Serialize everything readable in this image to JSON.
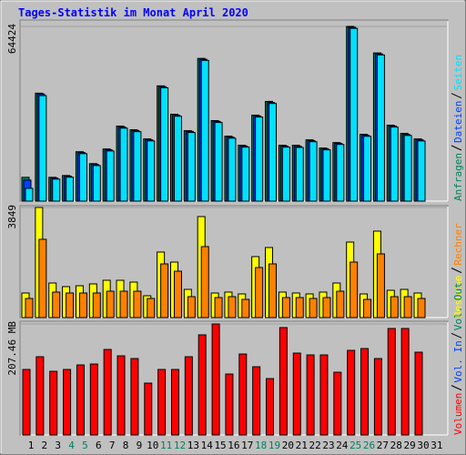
{
  "chart_data": {
    "type": "bar",
    "title": "Tages-Statistik im Monat April 2020",
    "categories": [
      "1",
      "2",
      "3",
      "4",
      "5",
      "6",
      "7",
      "8",
      "9",
      "10",
      "11",
      "12",
      "13",
      "14",
      "15",
      "16",
      "17",
      "18",
      "19",
      "20",
      "21",
      "22",
      "23",
      "24",
      "25",
      "26",
      "27",
      "28",
      "29",
      "30",
      "31"
    ],
    "category_colors": [
      "#000000",
      "#000000",
      "#000000",
      "#00805C",
      "#00805C",
      "#000000",
      "#000000",
      "#000000",
      "#000000",
      "#000000",
      "#00805C",
      "#00805C",
      "#000000",
      "#000000",
      "#000000",
      "#000000",
      "#000000",
      "#00805C",
      "#00805C",
      "#000000",
      "#000000",
      "#000000",
      "#000000",
      "#000000",
      "#00805C",
      "#00805C",
      "#000000",
      "#000000",
      "#000000",
      "#000000",
      "#000000"
    ],
    "panels": [
      {
        "ylim": [
          0,
          64424
        ],
        "yticks": [
          64424
        ],
        "series": [
          {
            "name": "Anfragen",
            "color": "#00805C",
            "values": [
              8770,
              39800,
              8770,
              9444,
              18214,
              13829,
              19226,
              27658,
              26309,
              22936,
              42500,
              32043,
              25972,
              52619,
              29682,
              23948,
              20575,
              31706,
              36765,
              20575,
              20575,
              22599,
              19563,
              21587,
              64424,
              24623,
              54642,
              27996,
              24960,
              22936,
              null
            ]
          },
          {
            "name": "Dateien",
            "color": "#0040FF",
            "values": [
              7758,
              39500,
              8500,
              9200,
              17900,
              13500,
              18900,
              27300,
              26000,
              22600,
              42200,
              31700,
              25700,
              52300,
              29400,
              23600,
              20300,
              31400,
              36400,
              20300,
              20200,
              22300,
              19300,
              21300,
              64100,
              24300,
              54300,
              27700,
              24600,
              22600,
              null
            ]
          },
          {
            "name": "Seiten",
            "color": "#00E0FF",
            "values": [
              4722,
              38900,
              8100,
              8800,
              17500,
              13100,
              18500,
              26900,
              25600,
              22200,
              41800,
              31300,
              25300,
              51900,
              29000,
              23200,
              19900,
              31000,
              36000,
              19900,
              19800,
              21900,
              18900,
              20900,
              63700,
              23900,
              53900,
              27300,
              24200,
              22200,
              null
            ]
          }
        ]
      },
      {
        "ylim": [
          0,
          3849
        ],
        "yticks": [
          3849
        ],
        "series": [
          {
            "name": "Besuche",
            "color": "#FFFF00",
            "values": [
              859,
              3849,
              1209,
              1082,
              1113,
              1177,
              1304,
              1304,
              1241,
              763,
              2290,
              1940,
              986,
              3531,
              859,
              891,
              827,
              2131,
              2449,
              891,
              859,
              827,
              891,
              1209,
              2640,
              827,
              3022,
              954,
              986,
              859,
              null
            ]
          },
          {
            "name": "Rechner",
            "color": "#FF8000",
            "values": [
              668,
              2736,
              891,
              859,
              859,
              859,
              922,
              922,
              922,
              668,
              1877,
              1622,
              732,
              2481,
              700,
              732,
              636,
              1750,
              1877,
              700,
              700,
              668,
              700,
              922,
              1940,
              636,
              2227,
              732,
              732,
              668,
              null
            ]
          }
        ]
      },
      {
        "ylim": [
          0,
          207.46
        ],
        "yticks": [
          {
            "value": 207.46,
            "label": "207.46 MB"
          }
        ],
        "series": [
          {
            "name": "Volumen",
            "color": "#FF0000",
            "values": [
              122.4,
              146.2,
              119.0,
              122.4,
              130.9,
              132.6,
              159.8,
              147.9,
              142.8,
              96.9,
              122.4,
              122.4,
              146.2,
              187.1,
              207.46,
              113.9,
              151.3,
              127.5,
              105.4,
              200.7,
              153.0,
              149.6,
              149.6,
              117.3,
              158.1,
              161.5,
              142.8,
              199.0,
              199.0,
              154.7,
              null
            ]
          }
        ],
        "legend_extra": [
          {
            "name": "Vol. In",
            "color": "#0040FF"
          },
          {
            "name": "Vol. Out",
            "color": "#00805C"
          }
        ]
      }
    ]
  }
}
